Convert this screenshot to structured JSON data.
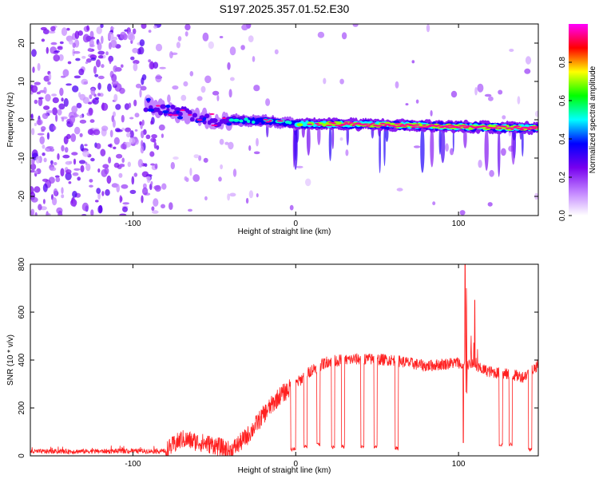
{
  "title": "S197.2025.357.01.52.E30",
  "spectrogram": {
    "type": "heatmap",
    "xlabel": "Height of straight line (km)",
    "ylabel": "Frequency (Hz)",
    "xlim": [
      -163,
      149
    ],
    "ylim": [
      -25,
      25
    ],
    "xticks": [
      -100,
      0,
      100
    ],
    "yticks": [
      -20,
      -10,
      0,
      10,
      20
    ],
    "colorbar": {
      "label": "Normalized spectral amplitude",
      "range": [
        0,
        1
      ],
      "ticks": [
        "0.0",
        "0.2",
        "0.4",
        "0.6",
        "0.8"
      ],
      "colors": [
        "#ffffff",
        "#c080ff",
        "#7700ee",
        "#0000ff",
        "#00ffff",
        "#00ff00",
        "#ffff00",
        "#ff0000",
        "#ff00ff"
      ]
    },
    "signal_band": {
      "track_points": [
        {
          "x": -90,
          "freq": 4.0
        },
        {
          "x": -75,
          "freq": 2.0
        },
        {
          "x": -50,
          "freq": 0.0
        },
        {
          "x": -20,
          "freq": -0.3
        },
        {
          "x": 0,
          "freq": -1.0
        },
        {
          "x": 50,
          "freq": -1.3
        },
        {
          "x": 100,
          "freq": -1.8
        },
        {
          "x": 149,
          "freq": -2.2
        }
      ],
      "peak_amplitude": 0.95
    }
  },
  "snr": {
    "type": "line",
    "xlabel": "Height of straight line (km)",
    "ylabel": "SNR (10 * v/v)",
    "xlim": [
      -163,
      149
    ],
    "ylim": [
      0,
      800
    ],
    "xticks": [
      -100,
      0,
      100
    ],
    "yticks": [
      0,
      200,
      400,
      600,
      800
    ],
    "color": "#ff2020",
    "profile": [
      {
        "x": -163,
        "y": 18
      },
      {
        "x": -80,
        "y": 20
      },
      {
        "x": -70,
        "y": 70
      },
      {
        "x": -50,
        "y": 45
      },
      {
        "x": -40,
        "y": 20
      },
      {
        "x": -30,
        "y": 80
      },
      {
        "x": -20,
        "y": 170
      },
      {
        "x": -10,
        "y": 250
      },
      {
        "x": 0,
        "y": 300
      },
      {
        "x": 10,
        "y": 360
      },
      {
        "x": 20,
        "y": 395
      },
      {
        "x": 40,
        "y": 405
      },
      {
        "x": 60,
        "y": 400
      },
      {
        "x": 80,
        "y": 375
      },
      {
        "x": 100,
        "y": 390
      },
      {
        "x": 120,
        "y": 350
      },
      {
        "x": 140,
        "y": 330
      },
      {
        "x": 149,
        "y": 380
      }
    ],
    "dropouts": [
      {
        "x0": -3,
        "x1": 0,
        "y": 20
      },
      {
        "x0": 5,
        "x1": 7,
        "y": 30
      },
      {
        "x0": 13,
        "x1": 15,
        "y": 40
      },
      {
        "x0": 22,
        "x1": 24,
        "y": 30
      },
      {
        "x0": 28,
        "x1": 30,
        "y": 30
      },
      {
        "x0": 40,
        "x1": 42,
        "y": 30
      },
      {
        "x0": 48,
        "x1": 50,
        "y": 30
      },
      {
        "x0": 61,
        "x1": 63,
        "y": 25
      },
      {
        "x0": 125,
        "x1": 127,
        "y": 40
      },
      {
        "x0": 131,
        "x1": 133,
        "y": 40
      },
      {
        "x0": 143,
        "x1": 145,
        "y": 20
      }
    ],
    "spikes": [
      {
        "x": 103,
        "y": 55
      },
      {
        "x": 104,
        "y": 810
      },
      {
        "x": 105,
        "y": 700
      },
      {
        "x": 110,
        "y": 650
      }
    ]
  }
}
